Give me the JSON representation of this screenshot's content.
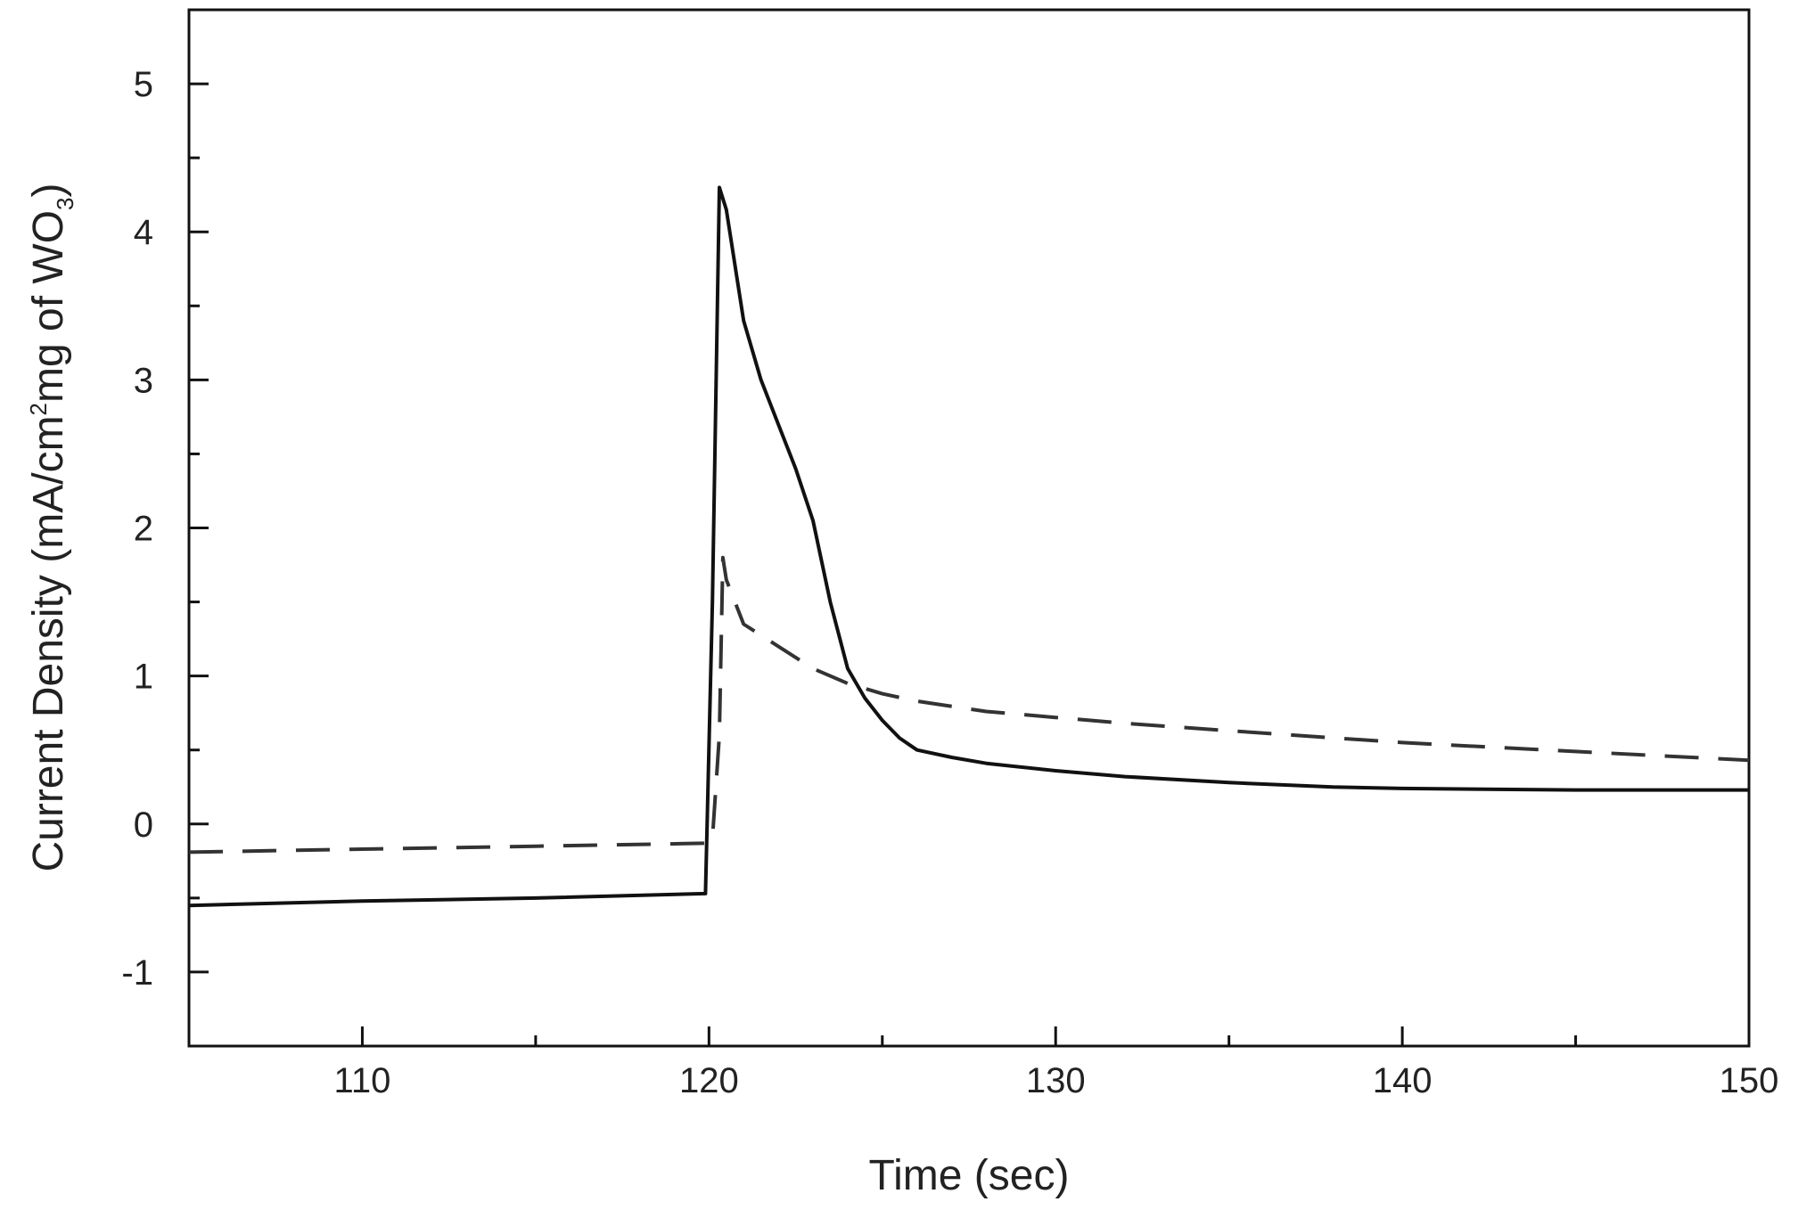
{
  "chart_data": {
    "type": "line",
    "xlabel": "Time (sec)",
    "ylabel": {
      "prefix": "Current Density (mA/cm",
      "sup": "2",
      "middle": "mg of WO",
      "sub": "3",
      "suffix": ")"
    },
    "xlim": [
      105,
      150
    ],
    "ylim": [
      -1.5,
      5.5
    ],
    "x_ticks": [
      110,
      120,
      130,
      140,
      150
    ],
    "y_ticks": [
      -1,
      0,
      1,
      2,
      3,
      4,
      5
    ],
    "x_minor_ticks": [
      115,
      125,
      135,
      145
    ],
    "y_minor_ticks": [
      -0.5,
      0.5,
      1.5,
      2.5,
      3.5,
      4.5
    ],
    "grid": false,
    "series": [
      {
        "style": "solid",
        "color": "#111111",
        "x": [
          105,
          110,
          115,
          119.9,
          120.1,
          120.3,
          120.5,
          121,
          121.5,
          122,
          122.5,
          123,
          123.5,
          124,
          124.5,
          125,
          125.5,
          126,
          127,
          128,
          130,
          132,
          135,
          138,
          140,
          145,
          150
        ],
        "y": [
          -0.55,
          -0.52,
          -0.5,
          -0.47,
          1.5,
          4.3,
          4.15,
          3.4,
          3.0,
          2.7,
          2.4,
          2.05,
          1.5,
          1.05,
          0.85,
          0.7,
          0.58,
          0.5,
          0.45,
          0.41,
          0.36,
          0.32,
          0.28,
          0.25,
          0.24,
          0.23,
          0.23
        ]
      },
      {
        "style": "dashed",
        "color": "#333333",
        "x": [
          105,
          110,
          115,
          119.9,
          120.1,
          120.3,
          120.4,
          120.5,
          121,
          122,
          123,
          124,
          125,
          126,
          128,
          130,
          132,
          135,
          140,
          145,
          150
        ],
        "y": [
          -0.19,
          -0.17,
          -0.15,
          -0.13,
          -0.1,
          0.6,
          1.8,
          1.65,
          1.35,
          1.2,
          1.05,
          0.95,
          0.88,
          0.83,
          0.76,
          0.72,
          0.68,
          0.63,
          0.55,
          0.49,
          0.43
        ]
      }
    ]
  }
}
